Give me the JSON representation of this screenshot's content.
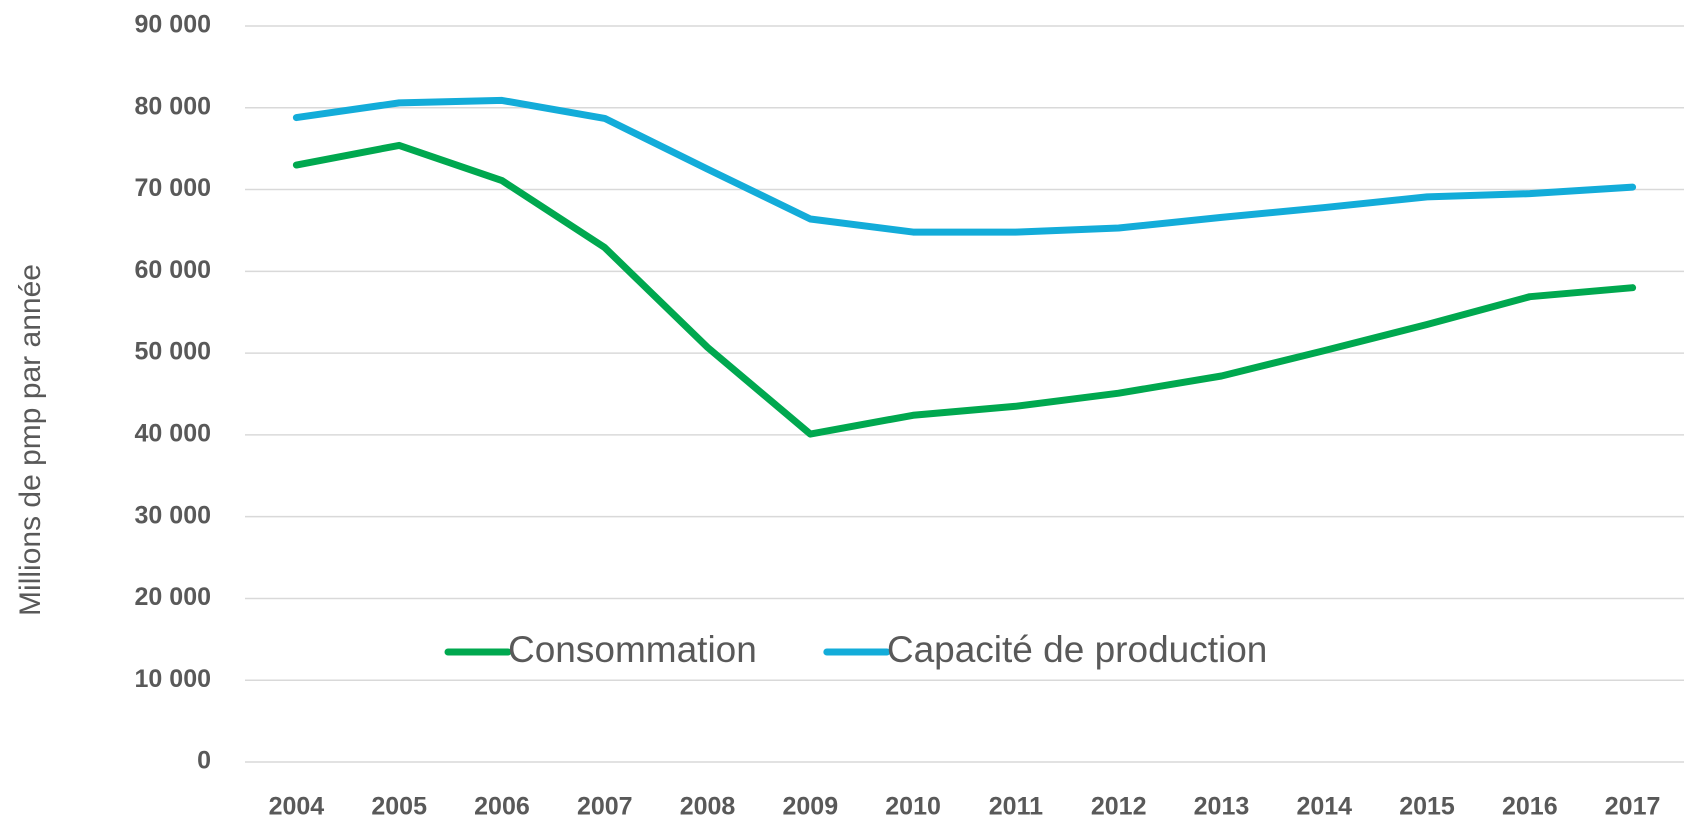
{
  "chart_data": {
    "type": "line",
    "ylabel": "Millions de pmp par année",
    "categories": [
      "2004",
      "2005",
      "2006",
      "2007",
      "2008",
      "2009",
      "2010",
      "2011",
      "2012",
      "2013",
      "2014",
      "2015",
      "2016",
      "2017"
    ],
    "series": [
      {
        "name": "Consommation",
        "color": "#00a84f",
        "values": [
          73000,
          75400,
          71100,
          62900,
          50700,
          40100,
          42400,
          43500,
          45100,
          47200,
          50300,
          53500,
          56900,
          58000
        ]
      },
      {
        "name": "Capacité de production",
        "color": "#13acd9",
        "values": [
          78800,
          80600,
          80900,
          78700,
          72500,
          66400,
          64800,
          64800,
          65300,
          66600,
          67800,
          69100,
          69500,
          70300
        ]
      }
    ],
    "ylim": [
      0,
      90000
    ],
    "yticks": [
      {
        "value": 0,
        "label": "0"
      },
      {
        "value": 10000,
        "label": "10 000"
      },
      {
        "value": 20000,
        "label": "20 000"
      },
      {
        "value": 30000,
        "label": "30 000"
      },
      {
        "value": 40000,
        "label": "40 000"
      },
      {
        "value": 50000,
        "label": "50 000"
      },
      {
        "value": 60000,
        "label": "60 000"
      },
      {
        "value": 70000,
        "label": "70 000"
      },
      {
        "value": 80000,
        "label": "80 000"
      },
      {
        "value": 90000,
        "label": "90 000"
      }
    ],
    "grid": true,
    "legend": "center"
  }
}
